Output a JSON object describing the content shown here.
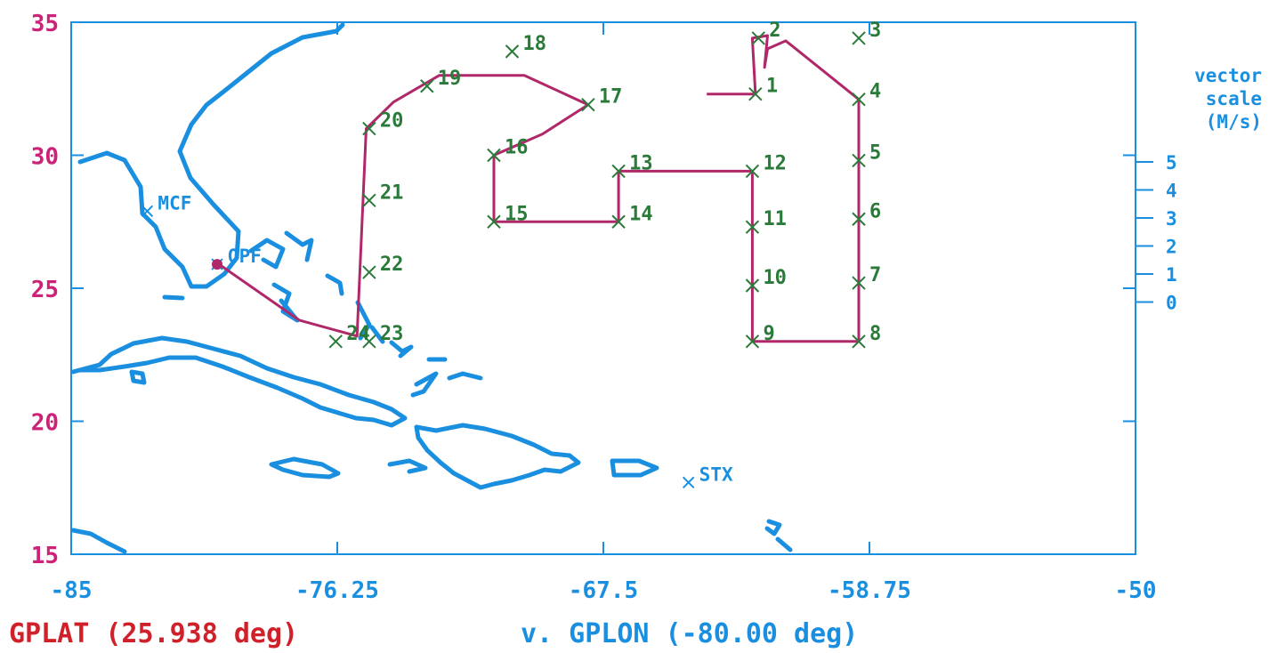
{
  "chart_data": {
    "type": "line",
    "xlim": [
      -85,
      -50
    ],
    "ylim": [
      15,
      35
    ],
    "x_ticks": [
      {
        "value": -85,
        "label": "-85"
      },
      {
        "value": -76.25,
        "label": "-76.25"
      },
      {
        "value": -67.5,
        "label": "-67.5"
      },
      {
        "value": -58.75,
        "label": "-58.75"
      },
      {
        "value": -50,
        "label": "-50"
      }
    ],
    "y_ticks": [
      {
        "value": 35,
        "label": "35"
      },
      {
        "value": 30,
        "label": "30"
      },
      {
        "value": 25,
        "label": "25"
      },
      {
        "value": 20,
        "label": "20"
      },
      {
        "value": 15,
        "label": "15"
      }
    ],
    "y_label": "GPLAT (25.938 deg)",
    "x_label": "v. GPLON (-80.00 deg)",
    "vector_scale": {
      "title": [
        "vector",
        "scale",
        "(M/s)"
      ],
      "labels": [
        "5",
        "4",
        "3",
        "2",
        "1",
        "0"
      ]
    },
    "waypoints": [
      {
        "label": "1",
        "lon": -62.5,
        "lat": 32.3
      },
      {
        "label": "2",
        "lon": -62.4,
        "lat": 34.4
      },
      {
        "label": "3",
        "lon": -59.1,
        "lat": 34.4
      },
      {
        "label": "4",
        "lon": -59.1,
        "lat": 32.1
      },
      {
        "label": "5",
        "lon": -59.1,
        "lat": 29.8
      },
      {
        "label": "6",
        "lon": -59.1,
        "lat": 27.6
      },
      {
        "label": "7",
        "lon": -59.1,
        "lat": 25.2
      },
      {
        "label": "8",
        "lon": -59.1,
        "lat": 23.0
      },
      {
        "label": "9",
        "lon": -62.6,
        "lat": 23.0
      },
      {
        "label": "10",
        "lon": -62.6,
        "lat": 25.1
      },
      {
        "label": "11",
        "lon": -62.6,
        "lat": 27.3
      },
      {
        "label": "12",
        "lon": -62.6,
        "lat": 29.4
      },
      {
        "label": "13",
        "lon": -67.0,
        "lat": 29.4
      },
      {
        "label": "14",
        "lon": -67.0,
        "lat": 27.5
      },
      {
        "label": "15",
        "lon": -71.1,
        "lat": 27.5
      },
      {
        "label": "16",
        "lon": -71.1,
        "lat": 30.0
      },
      {
        "label": "17",
        "lon": -68.0,
        "lat": 31.9
      },
      {
        "label": "18",
        "lon": -70.5,
        "lat": 33.9
      },
      {
        "label": "19",
        "lon": -73.3,
        "lat": 32.6
      },
      {
        "label": "20",
        "lon": -75.2,
        "lat": 31.0
      },
      {
        "label": "21",
        "lon": -75.2,
        "lat": 28.3
      },
      {
        "label": "22",
        "lon": -75.2,
        "lat": 25.6
      },
      {
        "label": "23",
        "lon": -75.2,
        "lat": 23.0
      },
      {
        "label": "24",
        "lon": -76.3,
        "lat": 23.0
      }
    ],
    "stations": [
      {
        "label": "MCF",
        "lon": -82.5,
        "lat": 27.9
      },
      {
        "label": "OPF",
        "lon": -80.2,
        "lat": 25.9
      },
      {
        "label": "STX",
        "lon": -64.7,
        "lat": 17.7
      }
    ],
    "track": [
      [
        -80.2,
        25.95
      ],
      [
        -77.5,
        23.8
      ],
      [
        -75.6,
        23.2
      ],
      [
        -75.3,
        31.0
      ],
      [
        -74.4,
        32.0
      ],
      [
        -72.9,
        33.0
      ],
      [
        -70.1,
        33.0
      ],
      [
        -68.0,
        31.9
      ],
      [
        -69.5,
        30.8
      ],
      [
        -71.1,
        30.0
      ],
      [
        -71.1,
        27.5
      ],
      [
        -67.0,
        27.5
      ],
      [
        -67.0,
        29.4
      ],
      [
        -62.6,
        29.4
      ],
      [
        -62.6,
        23.0
      ],
      [
        -59.1,
        23.0
      ],
      [
        -59.1,
        32.1
      ],
      [
        -61.5,
        34.3
      ],
      [
        -62.1,
        34.0
      ],
      [
        -62.2,
        33.3
      ],
      [
        -62.1,
        34.5
      ],
      [
        -62.6,
        34.4
      ],
      [
        -62.5,
        32.3
      ],
      [
        -64.1,
        32.3
      ]
    ],
    "colors": {
      "axes": "#1a8fe0",
      "coast": "#1a8fe0",
      "track": "#b0286a",
      "waypoint_marker": "#2a7a3a",
      "waypoint_label": "#2a7a3a",
      "ytick": "#cc2277",
      "xtick": "#1a8fe0"
    }
  }
}
